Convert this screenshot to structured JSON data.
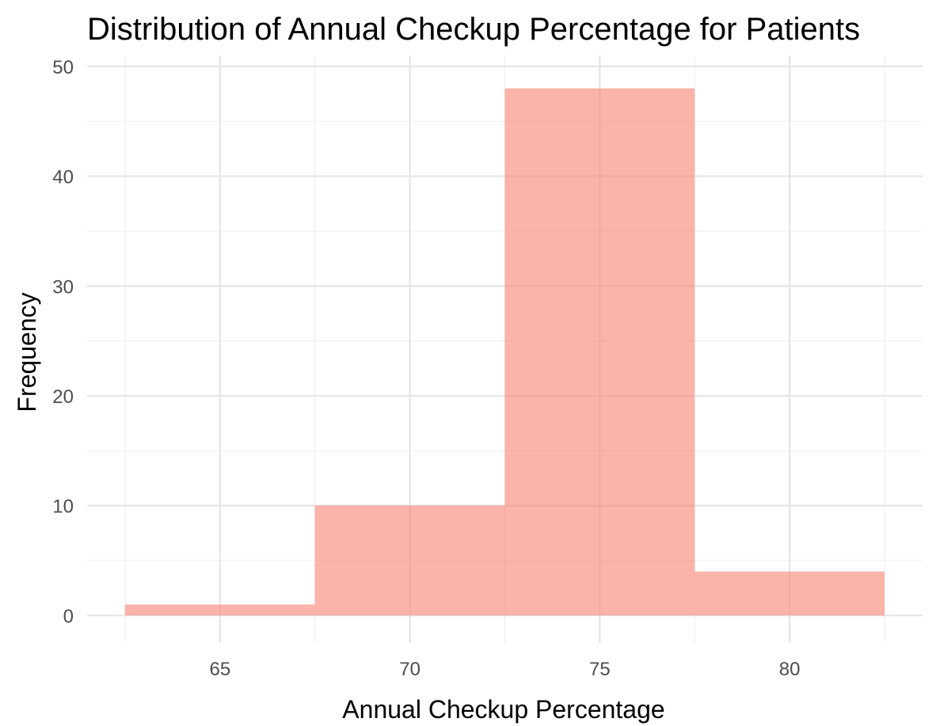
{
  "chart_data": {
    "type": "bar",
    "subtype": "histogram",
    "title": "Distribution of Annual Checkup Percentage for Patients",
    "xlabel": "Annual Checkup Percentage",
    "ylabel": "Frequency",
    "bins": [
      {
        "x0": 62.5,
        "x1": 67.5,
        "count": 1
      },
      {
        "x0": 67.5,
        "x1": 72.5,
        "count": 10
      },
      {
        "x0": 72.5,
        "x1": 77.5,
        "count": 48
      },
      {
        "x0": 77.5,
        "x1": 82.5,
        "count": 4
      }
    ],
    "xticks": [
      65,
      70,
      75,
      80
    ],
    "yticks": [
      0,
      10,
      20,
      30,
      40,
      50
    ],
    "xlim": [
      61.5,
      83.5
    ],
    "ylim": [
      -2.5,
      51
    ],
    "grid": true,
    "bar_color": "#FA8072",
    "bar_opacity": 0.6
  }
}
